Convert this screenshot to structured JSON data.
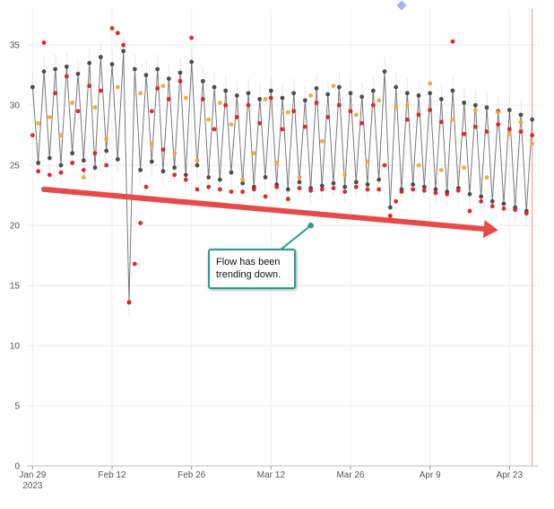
{
  "chart_data": {
    "type": "scatter",
    "title": "",
    "xlabel": "",
    "ylabel": "",
    "ylim": [
      0,
      38
    ],
    "grid": true,
    "x_range": [
      "2023-01-28",
      "2023-04-28"
    ],
    "y_ticks": [
      "0",
      "5",
      "10",
      "15",
      "20",
      "25",
      "30",
      "35"
    ],
    "x_ticks": [
      {
        "date": "2023-01-29",
        "label": "Jan 29",
        "sublabel": "2023"
      },
      {
        "date": "2023-02-12",
        "label": "Feb 12",
        "sublabel": ""
      },
      {
        "date": "2023-02-26",
        "label": "Feb 26",
        "sublabel": ""
      },
      {
        "date": "2023-03-12",
        "label": "Mar 12",
        "sublabel": ""
      },
      {
        "date": "2023-03-26",
        "label": "Mar 26",
        "sublabel": ""
      },
      {
        "date": "2023-04-09",
        "label": "Apr 9",
        "sublabel": ""
      },
      {
        "date": "2023-04-23",
        "label": "Apr 23",
        "sublabel": ""
      }
    ],
    "series": [
      {
        "color": "#444444",
        "values": [
          [
            "2023-01-29",
            31.5
          ],
          [
            "2023-01-30",
            25.2
          ],
          [
            "2023-01-31",
            32.8
          ],
          [
            "2023-02-01",
            25.6
          ],
          [
            "2023-02-02",
            33.0
          ],
          [
            "2023-02-03",
            25.0
          ],
          [
            "2023-02-04",
            33.2
          ],
          [
            "2023-02-05",
            26.0
          ],
          [
            "2023-02-06",
            32.6
          ],
          [
            "2023-02-07",
            25.4
          ],
          [
            "2023-02-08",
            33.5
          ],
          [
            "2023-02-09",
            24.8
          ],
          [
            "2023-02-10",
            34.0
          ],
          [
            "2023-02-11",
            26.2
          ],
          [
            "2023-02-12",
            33.4
          ],
          [
            "2023-02-13",
            25.5
          ],
          [
            "2023-02-14",
            34.5
          ],
          [
            "2023-02-15",
            13.6
          ],
          [
            "2023-02-16",
            33.0
          ],
          [
            "2023-02-17",
            24.6
          ],
          [
            "2023-02-18",
            32.5
          ],
          [
            "2023-02-19",
            25.3
          ],
          [
            "2023-02-20",
            33.0
          ],
          [
            "2023-02-21",
            24.5
          ],
          [
            "2023-02-22",
            32.2
          ],
          [
            "2023-02-23",
            24.8
          ],
          [
            "2023-02-24",
            32.7
          ],
          [
            "2023-02-25",
            24.2
          ],
          [
            "2023-02-26",
            33.6
          ],
          [
            "2023-02-27",
            25.0
          ],
          [
            "2023-02-28",
            32.0
          ],
          [
            "2023-03-01",
            24.0
          ],
          [
            "2023-03-02",
            31.5
          ],
          [
            "2023-03-03",
            23.8
          ],
          [
            "2023-03-04",
            31.2
          ],
          [
            "2023-03-05",
            24.4
          ],
          [
            "2023-03-06",
            30.8
          ],
          [
            "2023-03-07",
            23.5
          ],
          [
            "2023-03-08",
            31.0
          ],
          [
            "2023-03-09",
            23.2
          ],
          [
            "2023-03-10",
            30.5
          ],
          [
            "2023-03-11",
            24.0
          ],
          [
            "2023-03-12",
            31.2
          ],
          [
            "2023-03-13",
            23.4
          ],
          [
            "2023-03-14",
            30.6
          ],
          [
            "2023-03-15",
            23.0
          ],
          [
            "2023-03-16",
            31.0
          ],
          [
            "2023-03-17",
            23.6
          ],
          [
            "2023-03-18",
            30.4
          ],
          [
            "2023-03-19",
            23.1
          ],
          [
            "2023-03-20",
            31.4
          ],
          [
            "2023-03-21",
            23.3
          ],
          [
            "2023-03-22",
            30.9
          ],
          [
            "2023-03-23",
            23.5
          ],
          [
            "2023-03-24",
            31.5
          ],
          [
            "2023-03-25",
            23.2
          ],
          [
            "2023-03-26",
            31.0
          ],
          [
            "2023-03-27",
            23.6
          ],
          [
            "2023-03-28",
            30.7
          ],
          [
            "2023-03-29",
            23.4
          ],
          [
            "2023-03-30",
            31.2
          ],
          [
            "2023-03-31",
            23.8
          ],
          [
            "2023-04-01",
            32.8
          ],
          [
            "2023-04-02",
            21.5
          ],
          [
            "2023-04-03",
            31.5
          ],
          [
            "2023-04-04",
            23.0
          ],
          [
            "2023-04-05",
            31.0
          ],
          [
            "2023-04-06",
            23.4
          ],
          [
            "2023-04-07",
            30.8
          ],
          [
            "2023-04-08",
            23.2
          ],
          [
            "2023-04-09",
            31.0
          ],
          [
            "2023-04-10",
            23.0
          ],
          [
            "2023-04-11",
            30.5
          ],
          [
            "2023-04-12",
            22.8
          ],
          [
            "2023-04-13",
            31.2
          ],
          [
            "2023-04-14",
            23.1
          ],
          [
            "2023-04-15",
            30.2
          ],
          [
            "2023-04-16",
            22.6
          ],
          [
            "2023-04-17",
            30.0
          ],
          [
            "2023-04-18",
            22.4
          ],
          [
            "2023-04-19",
            29.8
          ],
          [
            "2023-04-20",
            22.0
          ],
          [
            "2023-04-21",
            29.5
          ],
          [
            "2023-04-22",
            21.8
          ],
          [
            "2023-04-23",
            29.6
          ],
          [
            "2023-04-24",
            21.5
          ],
          [
            "2023-04-25",
            29.2
          ],
          [
            "2023-04-26",
            21.2
          ],
          [
            "2023-04-27",
            28.8
          ]
        ]
      },
      {
        "color": "#e31b1b",
        "values": [
          [
            "2023-01-29",
            27.5
          ],
          [
            "2023-01-30",
            24.5
          ],
          [
            "2023-01-31",
            35.2
          ],
          [
            "2023-02-01",
            24.2
          ],
          [
            "2023-02-02",
            31.0
          ],
          [
            "2023-02-03",
            24.4
          ],
          [
            "2023-02-04",
            32.4
          ],
          [
            "2023-02-05",
            25.2
          ],
          [
            "2023-02-06",
            29.5
          ],
          [
            "2023-02-07",
            24.6
          ],
          [
            "2023-02-08",
            31.6
          ],
          [
            "2023-02-09",
            26.0
          ],
          [
            "2023-02-10",
            31.2
          ],
          [
            "2023-02-11",
            25.0
          ],
          [
            "2023-02-12",
            36.4
          ],
          [
            "2023-02-13",
            36.0
          ],
          [
            "2023-02-14",
            35.0
          ],
          [
            "2023-02-15",
            13.6
          ],
          [
            "2023-02-16",
            16.8
          ],
          [
            "2023-02-17",
            20.2
          ],
          [
            "2023-02-18",
            23.2
          ],
          [
            "2023-02-19",
            29.5
          ],
          [
            "2023-02-20",
            31.4
          ],
          [
            "2023-02-21",
            26.3
          ],
          [
            "2023-02-22",
            30.5
          ],
          [
            "2023-02-23",
            24.2
          ],
          [
            "2023-02-24",
            32.0
          ],
          [
            "2023-02-25",
            23.8
          ],
          [
            "2023-02-26",
            35.6
          ],
          [
            "2023-02-27",
            23.0
          ],
          [
            "2023-02-28",
            30.5
          ],
          [
            "2023-03-01",
            23.2
          ],
          [
            "2023-03-02",
            28.0
          ],
          [
            "2023-03-03",
            23.0
          ],
          [
            "2023-03-04",
            30.0
          ],
          [
            "2023-03-05",
            22.8
          ],
          [
            "2023-03-06",
            29.0
          ],
          [
            "2023-03-07",
            22.8
          ],
          [
            "2023-03-08",
            30.0
          ],
          [
            "2023-03-09",
            23.0
          ],
          [
            "2023-03-10",
            28.5
          ],
          [
            "2023-03-11",
            22.4
          ],
          [
            "2023-03-12",
            30.6
          ],
          [
            "2023-03-13",
            23.2
          ],
          [
            "2023-03-14",
            28.0
          ],
          [
            "2023-03-15",
            22.2
          ],
          [
            "2023-03-16",
            29.5
          ],
          [
            "2023-03-17",
            23.1
          ],
          [
            "2023-03-18",
            28.2
          ],
          [
            "2023-03-19",
            22.9
          ],
          [
            "2023-03-20",
            30.2
          ],
          [
            "2023-03-21",
            23.0
          ],
          [
            "2023-03-22",
            29.0
          ],
          [
            "2023-03-23",
            23.1
          ],
          [
            "2023-03-24",
            30.0
          ],
          [
            "2023-03-25",
            22.8
          ],
          [
            "2023-03-26",
            29.5
          ],
          [
            "2023-03-27",
            23.2
          ],
          [
            "2023-03-28",
            28.5
          ],
          [
            "2023-03-29",
            23.0
          ],
          [
            "2023-03-30",
            30.0
          ],
          [
            "2023-03-31",
            23.0
          ],
          [
            "2023-04-01",
            25.0
          ],
          [
            "2023-04-02",
            20.8
          ],
          [
            "2023-04-03",
            22.0
          ],
          [
            "2023-04-04",
            22.8
          ],
          [
            "2023-04-05",
            28.8
          ],
          [
            "2023-04-06",
            23.0
          ],
          [
            "2023-04-07",
            29.2
          ],
          [
            "2023-04-08",
            22.9
          ],
          [
            "2023-04-09",
            29.6
          ],
          [
            "2023-04-10",
            22.7
          ],
          [
            "2023-04-11",
            28.6
          ],
          [
            "2023-04-12",
            22.6
          ],
          [
            "2023-04-13",
            35.3
          ],
          [
            "2023-04-14",
            22.9
          ],
          [
            "2023-04-15",
            27.6
          ],
          [
            "2023-04-16",
            21.2
          ],
          [
            "2023-04-17",
            28.2
          ],
          [
            "2023-04-18",
            22.0
          ],
          [
            "2023-04-19",
            27.8
          ],
          [
            "2023-04-20",
            21.6
          ],
          [
            "2023-04-21",
            28.4
          ],
          [
            "2023-04-22",
            21.4
          ],
          [
            "2023-04-23",
            28.0
          ],
          [
            "2023-04-24",
            21.3
          ],
          [
            "2023-04-25",
            27.8
          ],
          [
            "2023-04-26",
            21.0
          ],
          [
            "2023-04-27",
            27.5
          ]
        ]
      },
      {
        "color": "#f0a830",
        "values": [
          [
            "2023-01-30",
            28.5
          ],
          [
            "2023-02-01",
            29.0
          ],
          [
            "2023-02-03",
            27.5
          ],
          [
            "2023-02-05",
            30.2
          ],
          [
            "2023-02-07",
            24.0
          ],
          [
            "2023-02-09",
            29.8
          ],
          [
            "2023-02-11",
            27.2
          ],
          [
            "2023-02-13",
            31.5
          ],
          [
            "2023-02-17",
            31.0
          ],
          [
            "2023-02-19",
            26.8
          ],
          [
            "2023-02-21",
            31.6
          ],
          [
            "2023-02-23",
            26.0
          ],
          [
            "2023-02-25",
            30.6
          ],
          [
            "2023-02-27",
            25.4
          ],
          [
            "2023-03-01",
            28.8
          ],
          [
            "2023-03-03",
            30.2
          ],
          [
            "2023-03-05",
            28.4
          ],
          [
            "2023-03-07",
            23.8
          ],
          [
            "2023-03-09",
            26.0
          ],
          [
            "2023-03-11",
            30.5
          ],
          [
            "2023-03-13",
            25.2
          ],
          [
            "2023-03-15",
            29.4
          ],
          [
            "2023-03-17",
            24.0
          ],
          [
            "2023-03-19",
            30.8
          ],
          [
            "2023-03-21",
            27.0
          ],
          [
            "2023-03-23",
            31.6
          ],
          [
            "2023-03-25",
            24.2
          ],
          [
            "2023-03-27",
            29.2
          ],
          [
            "2023-03-29",
            25.3
          ],
          [
            "2023-03-31",
            30.4
          ],
          [
            "2023-04-03",
            29.8
          ],
          [
            "2023-04-05",
            30.0
          ],
          [
            "2023-04-07",
            25.0
          ],
          [
            "2023-04-09",
            31.8
          ],
          [
            "2023-04-11",
            24.6
          ],
          [
            "2023-04-13",
            28.8
          ],
          [
            "2023-04-15",
            24.8
          ],
          [
            "2023-04-17",
            29.6
          ],
          [
            "2023-04-19",
            24.0
          ],
          [
            "2023-04-21",
            29.4
          ],
          [
            "2023-04-23",
            27.6
          ],
          [
            "2023-04-25",
            28.6
          ],
          [
            "2023-04-27",
            26.8
          ]
        ]
      }
    ],
    "trend_arrow": {
      "from": [
        "2023-01-31",
        23.0
      ],
      "to": [
        "2023-04-21",
        19.6
      ],
      "color": "#e84a4a"
    },
    "marker": {
      "date": "2023-04-04",
      "value": 38.3,
      "color": "#a9b2f0"
    },
    "reference_line": {
      "date": "2023-04-27",
      "color": "#f4a0a0"
    },
    "annotation": {
      "lines": [
        "Flow has been",
        "trending down."
      ],
      "border_color": "#2a9d8f",
      "pointer_to": [
        "2023-03-19",
        20.0
      ]
    }
  }
}
